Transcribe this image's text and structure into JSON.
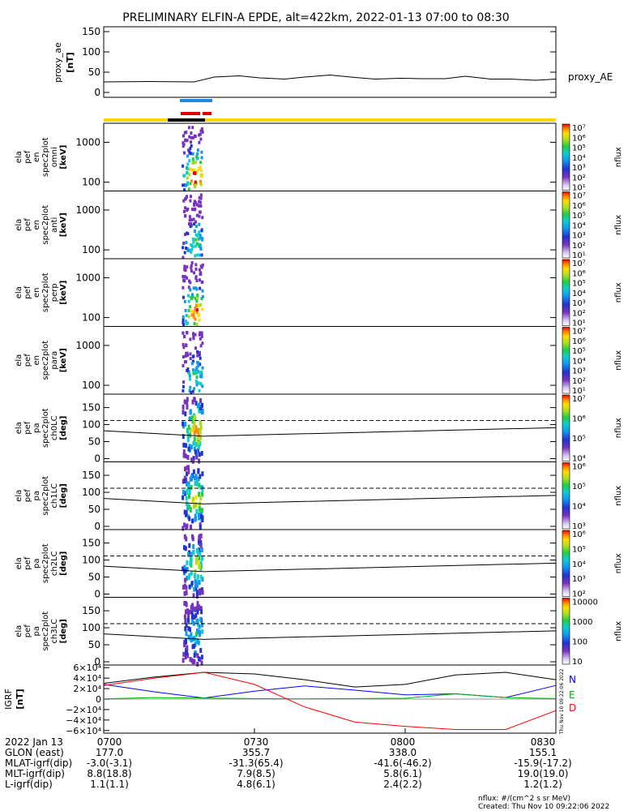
{
  "title": "PRELIMINARY ELFIN-A EPDE, alt=422km, 2022-01-13 07:00 to 08:30",
  "proxy_panel": {
    "ylabel_lines": [
      "proxy_ae",
      "[nT]"
    ],
    "yticks": [
      "150",
      "100",
      "50",
      "0"
    ],
    "series_label": "proxy_AE"
  },
  "spectrogram_panels": [
    {
      "label_lines": [
        "ela",
        "pef",
        "en",
        "spec2plot",
        "omni",
        "[keV]"
      ],
      "yticks": [
        "1000",
        "100"
      ],
      "colorbar": {
        "label": "nflux",
        "ticks": [
          "10⁷",
          "10⁶",
          "10⁵",
          "10⁴",
          "10³",
          "10²",
          "10¹"
        ]
      }
    },
    {
      "label_lines": [
        "ela",
        "pef",
        "en",
        "spec2plot",
        "anti",
        "[keV]"
      ],
      "yticks": [
        "1000",
        "100"
      ],
      "colorbar": {
        "label": "nflux",
        "ticks": [
          "10⁷",
          "10⁶",
          "10⁵",
          "10⁴",
          "10³",
          "10²",
          "10¹"
        ]
      }
    },
    {
      "label_lines": [
        "ela",
        "pef",
        "en",
        "spec2plot",
        "perp",
        "[keV]"
      ],
      "yticks": [
        "1000",
        "100"
      ],
      "colorbar": {
        "label": "nflux",
        "ticks": [
          "10⁷",
          "10⁶",
          "10⁵",
          "10⁴",
          "10³",
          "10²",
          "10¹"
        ]
      }
    },
    {
      "label_lines": [
        "ela",
        "pef",
        "en",
        "spec2plot",
        "para",
        "[keV]"
      ],
      "yticks": [
        "1000",
        "100"
      ],
      "colorbar": {
        "label": "nflux",
        "ticks": [
          "10⁷",
          "10⁶",
          "10⁵",
          "10⁴",
          "10³",
          "10²",
          "10¹"
        ]
      }
    },
    {
      "label_lines": [
        "ela",
        "pef",
        "pa",
        "spec2plot",
        "ch0LC",
        "[deg]"
      ],
      "yticks": [
        "150",
        "100",
        "50",
        "0"
      ],
      "colorbar": {
        "label": "nflux",
        "ticks": [
          "10⁷",
          "10⁶",
          "10⁵",
          "10⁴"
        ]
      }
    },
    {
      "label_lines": [
        "ela",
        "pef",
        "pa",
        "spec2plot",
        "ch1LC",
        "[deg]"
      ],
      "yticks": [
        "150",
        "100",
        "50",
        "0"
      ],
      "colorbar": {
        "label": "nflux",
        "ticks": [
          "10⁶",
          "10⁵",
          "10⁴",
          "10³"
        ]
      }
    },
    {
      "label_lines": [
        "ela",
        "pef",
        "pa",
        "spec2plot",
        "ch2LC",
        "[deg]"
      ],
      "yticks": [
        "150",
        "100",
        "50",
        "0"
      ],
      "colorbar": {
        "label": "nflux",
        "ticks": [
          "10⁶",
          "10⁵",
          "10⁴",
          "10³",
          "10²"
        ]
      }
    },
    {
      "label_lines": [
        "ela",
        "pef",
        "pa",
        "spec2plot",
        "ch3LC",
        "[deg]"
      ],
      "yticks": [
        "150",
        "100",
        "50",
        "0"
      ],
      "colorbar": {
        "label": "nflux",
        "ticks": [
          "10000",
          "1000",
          "100",
          "10"
        ]
      }
    }
  ],
  "igrf_panel": {
    "ylabel_lines": [
      "IGRF",
      "[nT]"
    ],
    "yticks": [
      "6×10⁴",
      "4×10⁴",
      "2×10⁴",
      "0",
      "−2×10⁴",
      "−4×10⁴",
      "−6×10⁴"
    ],
    "legend": [
      {
        "label": "N",
        "color": "#0000ff"
      },
      {
        "label": "E",
        "color": "#00b000"
      },
      {
        "label": "D",
        "color": "#ff0000"
      }
    ],
    "vertical_note": "Thu Nov 10 09:22:06 2022"
  },
  "ephemeris": {
    "row_labels": [
      "2022 Jan 13",
      "GLON (east)",
      "MLAT-igrf(dip)",
      "MLT-igrf(dip)",
      "L-igrf(dip)"
    ],
    "columns": [
      {
        "time": "0700",
        "values": [
          "177.0",
          "-3.0(-3.1)",
          "8.8(18.8)",
          "1.1(1.1)"
        ]
      },
      {
        "time": "0730",
        "values": [
          "355.7",
          "-31.3(65.4)",
          "7.9(8.5)",
          "4.8(6.1)"
        ]
      },
      {
        "time": "0800",
        "values": [
          "338.0",
          "-41.6(-46.2)",
          "5.8(6.1)",
          "2.4(2.2)"
        ]
      },
      {
        "time": "0830",
        "values": [
          "155.1",
          "-15.9(-17.2)",
          "19.0(19.0)",
          "1.2(1.2)"
        ]
      }
    ]
  },
  "footer": {
    "units_note": "nflux: #/(cm^2 s sr MeV)",
    "created": "Created: Thu Nov 10 09:22:06 2022"
  },
  "colors": {
    "status_bar": "#ffd700",
    "science_bar": "#000000",
    "blue_marker": "#1e88e5",
    "red_marker": "#dd0000",
    "igrf_total": "#000000"
  },
  "chart_data": {
    "type": "heatmap",
    "time_axis": {
      "start": "07:00",
      "end": "08:30",
      "ticks": [
        "0700",
        "0730",
        "0800",
        "0830"
      ]
    },
    "proxy_ae": {
      "type": "line",
      "ylim": [
        0,
        150
      ],
      "t_min": [
        0,
        9,
        18,
        22,
        27,
        31,
        36,
        40,
        45,
        50,
        54,
        59,
        63,
        68,
        72,
        77,
        81,
        86,
        90
      ],
      "values": [
        26,
        27,
        26,
        38,
        41,
        36,
        33,
        38,
        43,
        37,
        33,
        35,
        34,
        34,
        40,
        33,
        33,
        30,
        33
      ]
    },
    "activity_window_min": [
      15.5,
      19.5
    ],
    "energy_ylim_keV": [
      60,
      3000
    ],
    "pa_ylim_deg": [
      0,
      180
    ],
    "loss_cone_deg": {
      "solid_start": 82,
      "solid_min": 66,
      "solid_end": 91,
      "dashed": 112
    },
    "igrf_nT": {
      "ylim": [
        -65000,
        65000
      ],
      "t_min": [
        0,
        10,
        20,
        30,
        40,
        50,
        60,
        70,
        80,
        90
      ],
      "total": [
        30000,
        42000,
        51000,
        48000,
        37000,
        23000,
        28000,
        46000,
        51000,
        37000
      ],
      "N": [
        28000,
        14000,
        2000,
        15000,
        25000,
        17000,
        8000,
        10000,
        3000,
        26000
      ],
      "E": [
        500,
        3000,
        2000,
        1000,
        500,
        1000,
        1500,
        10000,
        3000,
        1000
      ],
      "D": [
        26000,
        40000,
        51000,
        28000,
        -15000,
        -44000,
        -52000,
        -58000,
        -58000,
        -22000
      ]
    }
  }
}
